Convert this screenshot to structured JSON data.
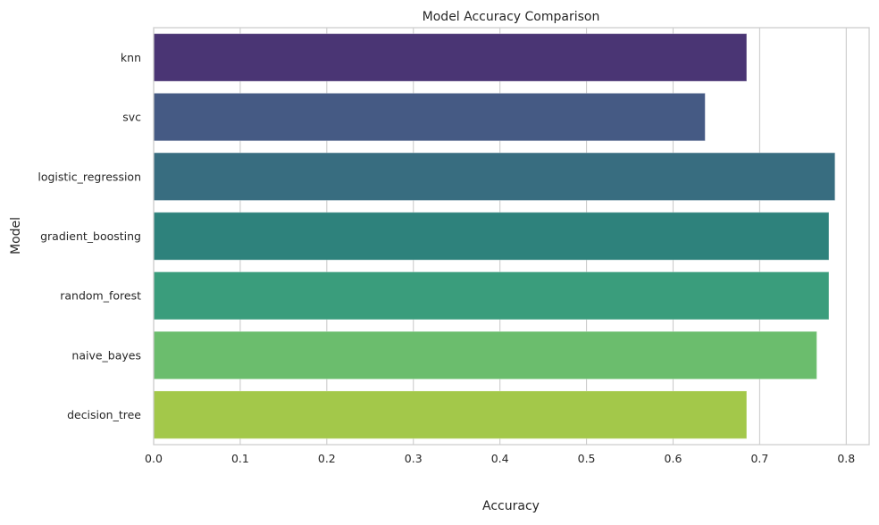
{
  "chart_data": {
    "type": "bar",
    "orientation": "horizontal",
    "title": "Model Accuracy Comparison",
    "xlabel": "Accuracy",
    "ylabel": "Model",
    "categories": [
      "knn",
      "svc",
      "logistic_regression",
      "gradient_boosting",
      "random_forest",
      "naive_bayes",
      "decision_tree"
    ],
    "values": [
      0.685,
      0.637,
      0.787,
      0.78,
      0.78,
      0.766,
      0.685
    ],
    "colors": [
      "#4a3574",
      "#455a84",
      "#386d80",
      "#2e827c",
      "#3a9d7c",
      "#6bbd6d",
      "#a3c84a"
    ],
    "xlim": [
      0,
      0.8265
    ],
    "xticks": [
      0.0,
      0.1,
      0.2,
      0.3,
      0.4,
      0.5,
      0.6,
      0.7,
      0.8
    ],
    "xtick_labels": [
      "0.0",
      "0.1",
      "0.2",
      "0.3",
      "0.4",
      "0.5",
      "0.6",
      "0.7",
      "0.8"
    ],
    "grid": true
  }
}
